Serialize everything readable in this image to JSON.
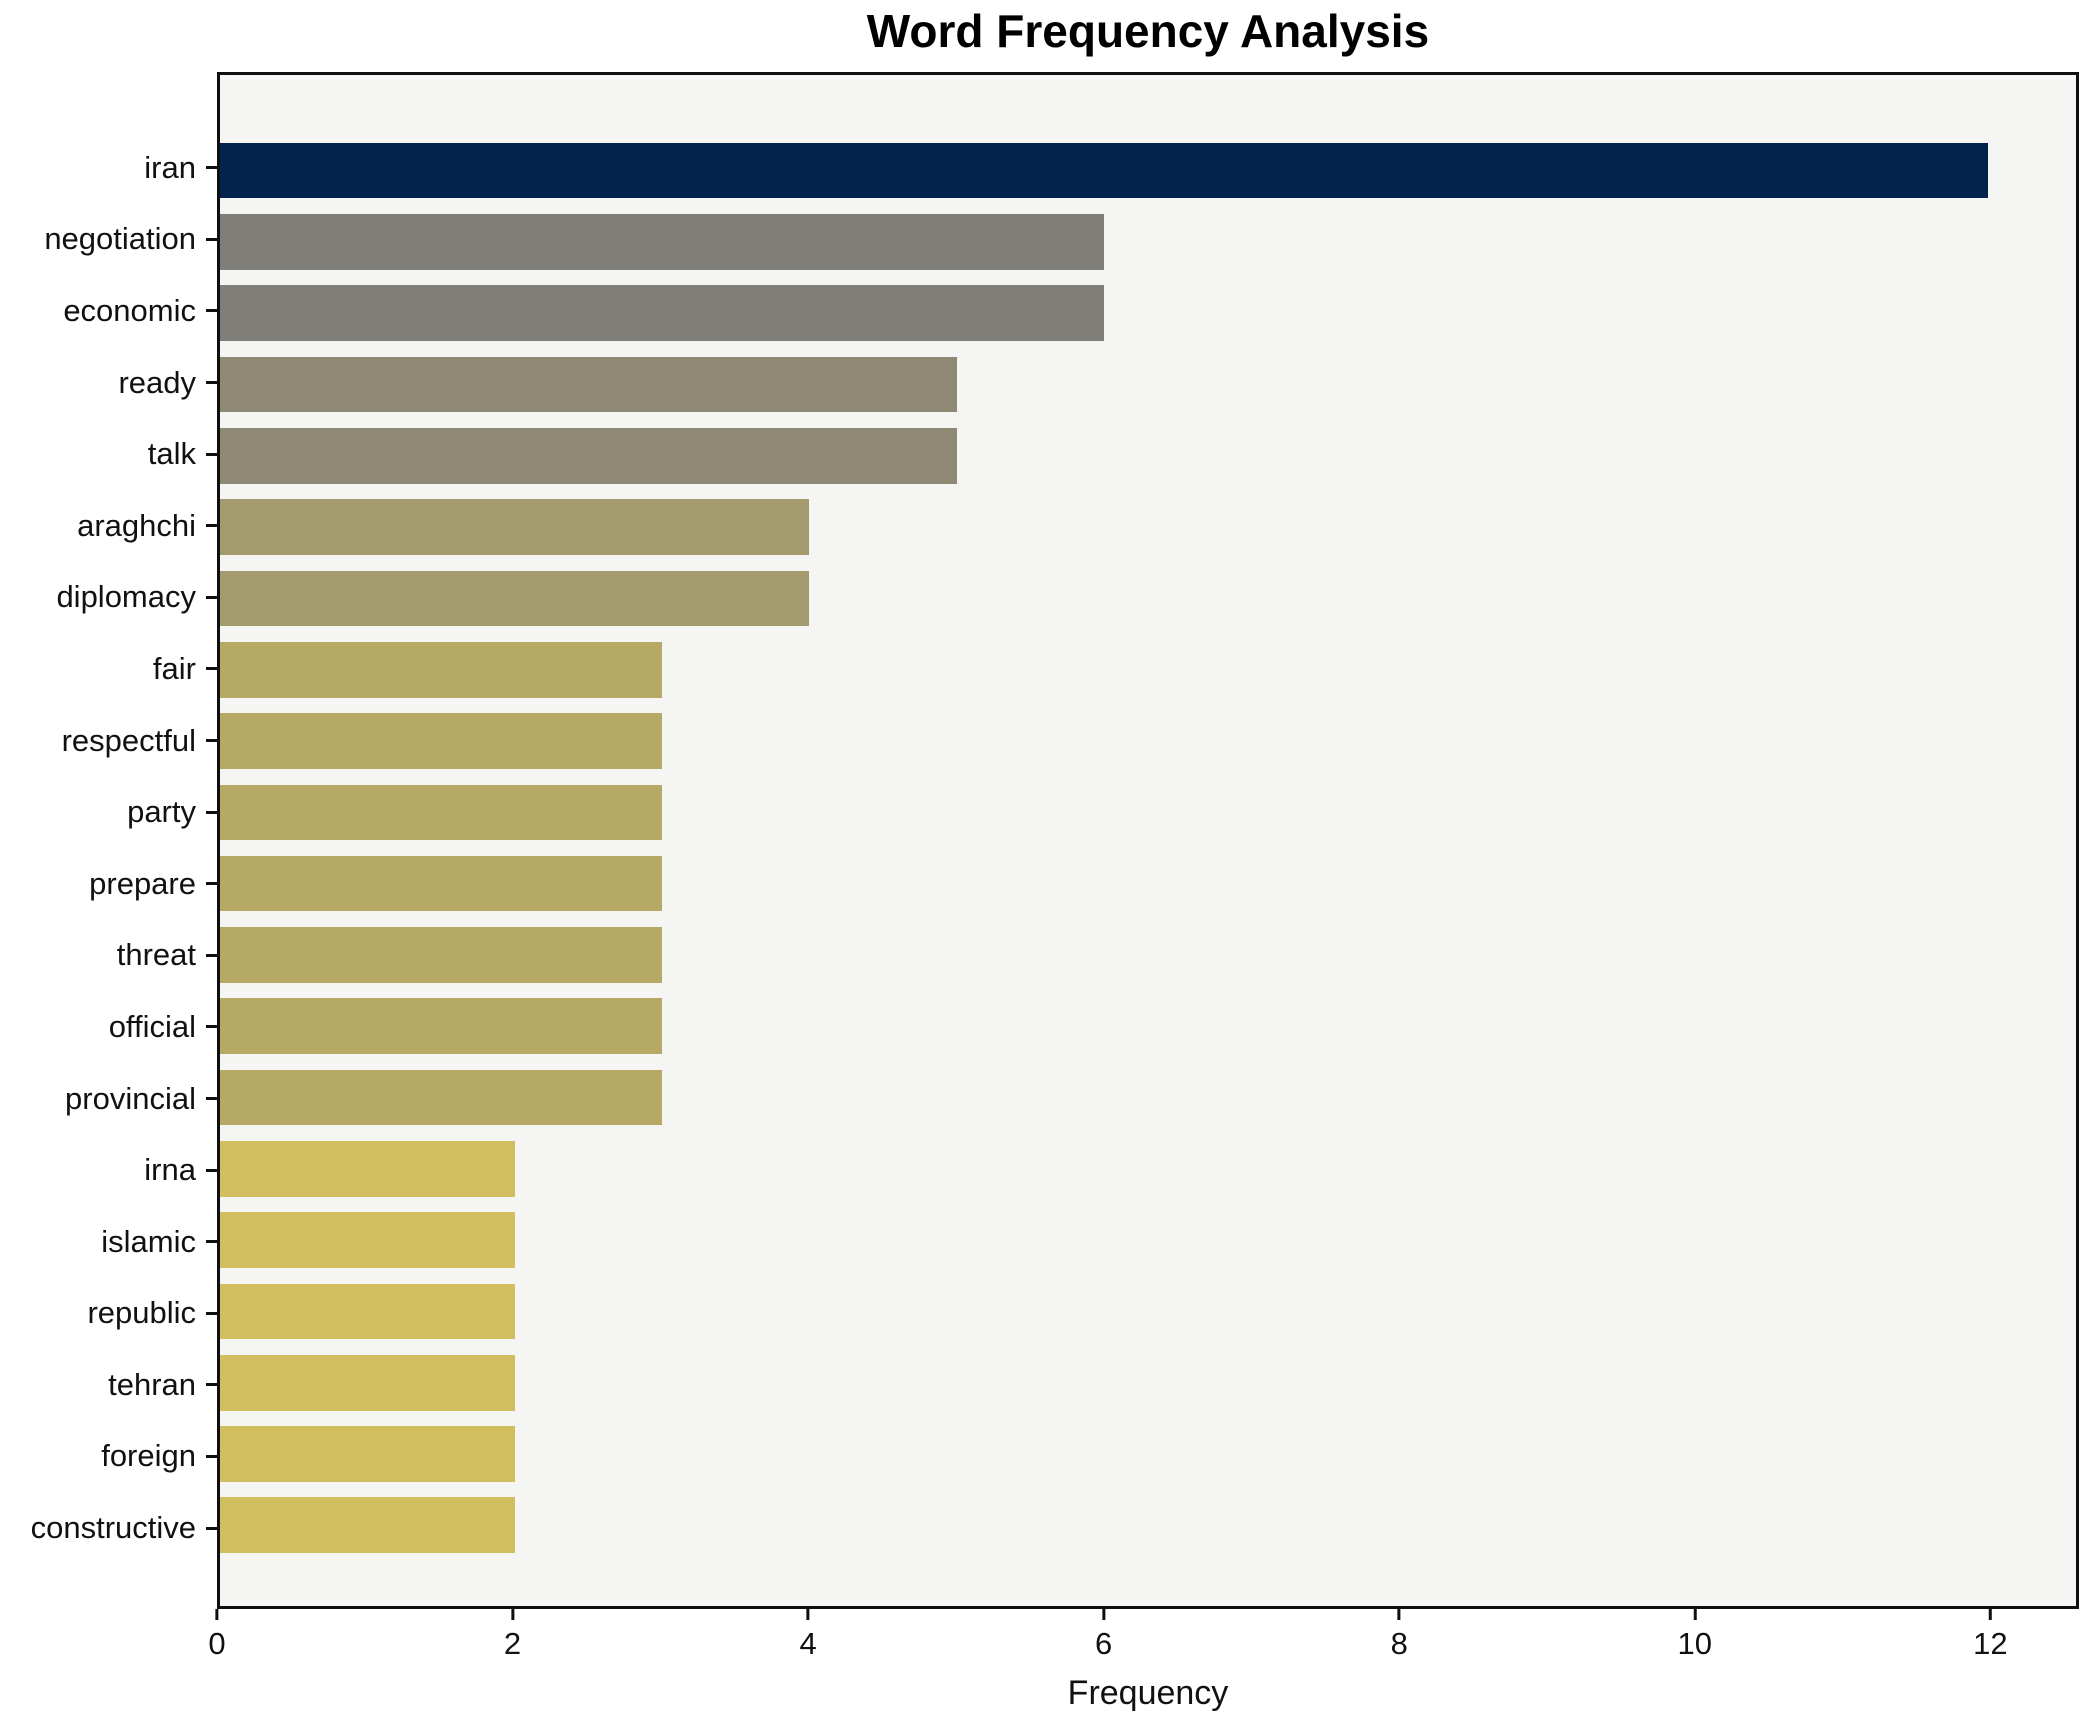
{
  "chart_data": {
    "type": "bar",
    "orientation": "horizontal",
    "title": "Word Frequency Analysis",
    "xlabel": "Frequency",
    "ylabel": "",
    "xlim": [
      0,
      12.6
    ],
    "xticks": [
      0,
      2,
      4,
      6,
      8,
      10,
      12
    ],
    "grid": false,
    "legend": false,
    "plot_background": "#f5f5f4",
    "figure_background": "#ffffff",
    "categories": [
      "iran",
      "negotiation",
      "economic",
      "ready",
      "talk",
      "araghchi",
      "diplomacy",
      "fair",
      "respectful",
      "party",
      "prepare",
      "threat",
      "official",
      "provincial",
      "irna",
      "islamic",
      "republic",
      "tehran",
      "foreign",
      "constructive"
    ],
    "values": [
      12,
      6,
      6,
      5,
      5,
      4,
      4,
      3,
      3,
      3,
      3,
      3,
      3,
      3,
      2,
      2,
      2,
      2,
      2,
      2
    ],
    "value_colors": {
      "12": "#03234e",
      "6": "#7f7e79",
      "5": "#8f8873",
      "4": "#a39a6e",
      "3": "#b5a965",
      "2": "#d1be5f"
    }
  }
}
